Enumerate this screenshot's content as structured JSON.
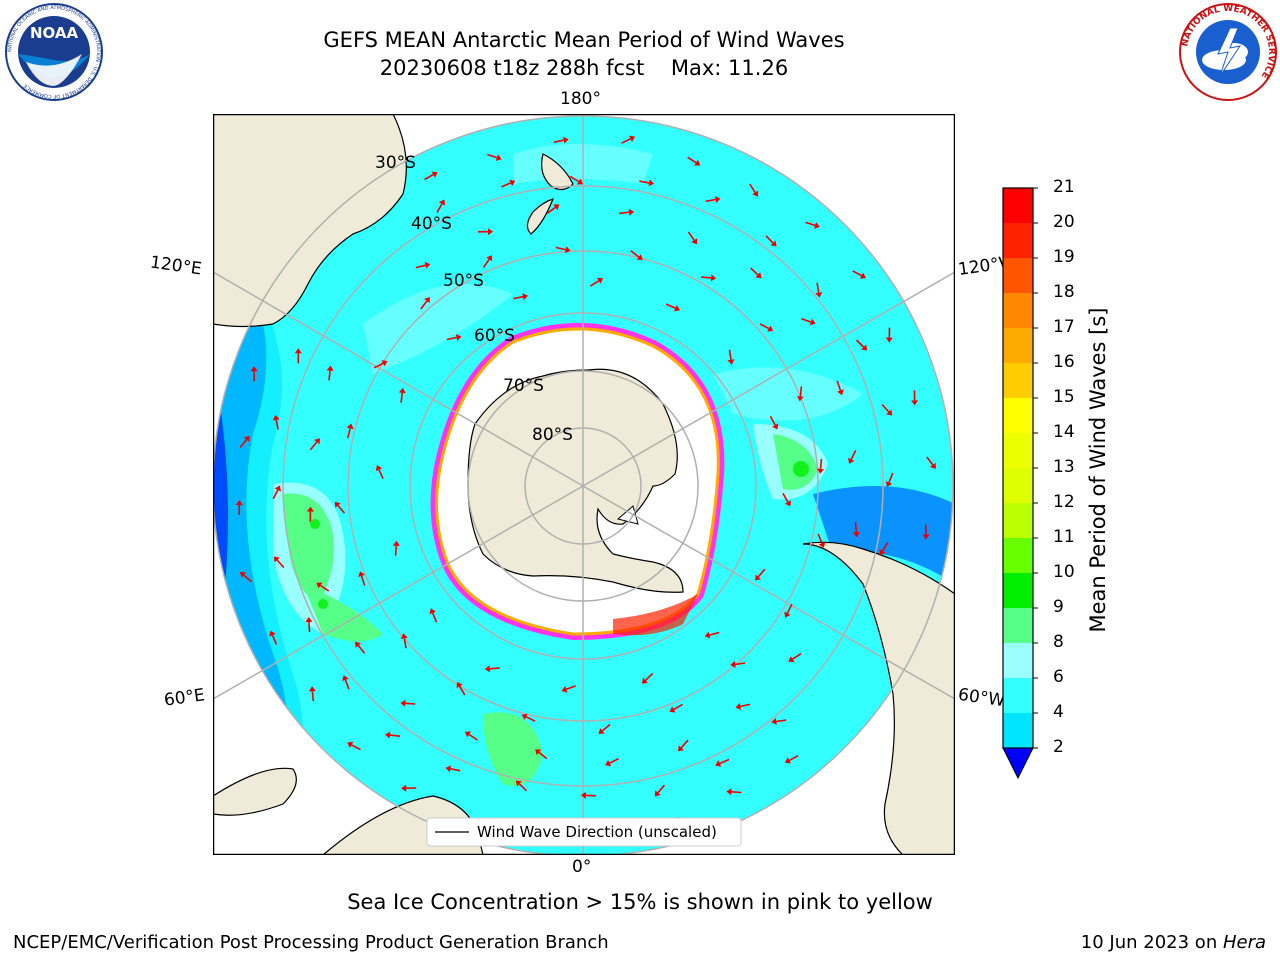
{
  "title": {
    "line1": "GEFS MEAN Antarctic Mean Period of Wind Waves",
    "line2": "20230608 t18z 288h fcst    Max: 11.26"
  },
  "map": {
    "projection": "south-polar-stereographic",
    "longitude_labels": [
      "180°",
      "120°E",
      "120°W",
      "60°E",
      "60°W",
      "0°"
    ],
    "latitude_labels": [
      "30°S",
      "40°S",
      "50°S",
      "60°S",
      "70°S",
      "80°S"
    ],
    "legend": "Wind Wave Direction (unscaled)",
    "arrow_color": "#ee0000",
    "land_color": "#efebd8",
    "ocean_base_color": "#33ffff"
  },
  "colorbar": {
    "label": "Mean Period of Wind Waves [s]",
    "ticks": [
      "2",
      "4",
      "6",
      "8",
      "9",
      "10",
      "11",
      "12",
      "13",
      "14",
      "15",
      "16",
      "17",
      "18",
      "19",
      "20",
      "21"
    ],
    "colors": [
      "#0077ff",
      "#00e5ff",
      "#33ffff",
      "#99ffff",
      "#55ff88",
      "#00ee00",
      "#66ff00",
      "#bbff00",
      "#ddff00",
      "#eeff00",
      "#ffff00",
      "#ffcc00",
      "#ffaa00",
      "#ff8800",
      "#ff5500",
      "#ff2200",
      "#ff0000"
    ],
    "extend_color": "#0000ff"
  },
  "caption": "Sea Ice Concentration > 15% is shown in pink to yellow",
  "footer": {
    "left": "NCEP/EMC/Verification Post Processing Product Generation Branch",
    "right_prefix": "10 Jun 2023 on ",
    "right_host": "Hera"
  },
  "logos": {
    "noaa_text": "NOAA",
    "noaa_ring": "NATIONAL OCEANIC AND ATMOSPHERIC ADMINISTRATION · U.S. DEPARTMENT OF COMMERCE",
    "nws_ring": "NATIONAL WEATHER SERVICE"
  }
}
